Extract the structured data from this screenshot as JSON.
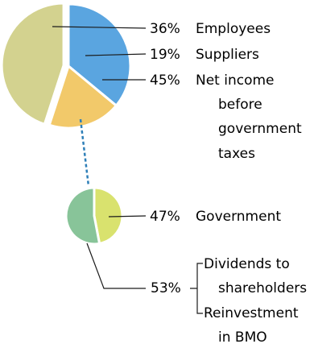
{
  "chart_data": [
    {
      "type": "pie",
      "slices": [
        {
          "label": "Employees",
          "value": 36,
          "value_label": "36%",
          "color": "#5aa5e0"
        },
        {
          "label": "Suppliers",
          "value": 19,
          "value_label": "19%",
          "color": "#f2c96a"
        },
        {
          "label": "Net income before government taxes",
          "value": 45,
          "value_label": "45%",
          "color": "#d3d28f",
          "label_lines": [
            "Net income",
            "before",
            "government",
            "taxes"
          ],
          "exploded": true
        }
      ]
    },
    {
      "type": "pie",
      "slices": [
        {
          "label": "Government",
          "value": 47,
          "value_label": "47%",
          "color": "#d9e26e"
        },
        {
          "label": "Dividends to shareholders / Reinvestment in BMO",
          "value": 53,
          "value_label": "53%",
          "color": "#88c499",
          "sub_items": [
            {
              "lines": [
                "Dividends to",
                "shareholders"
              ]
            },
            {
              "lines": [
                "Reinvestment",
                "in BMO"
              ]
            }
          ]
        }
      ]
    }
  ],
  "colors": {
    "connector": "#2e7fb8",
    "leader": "#1a1a1a",
    "separator": "#ffffff"
  }
}
